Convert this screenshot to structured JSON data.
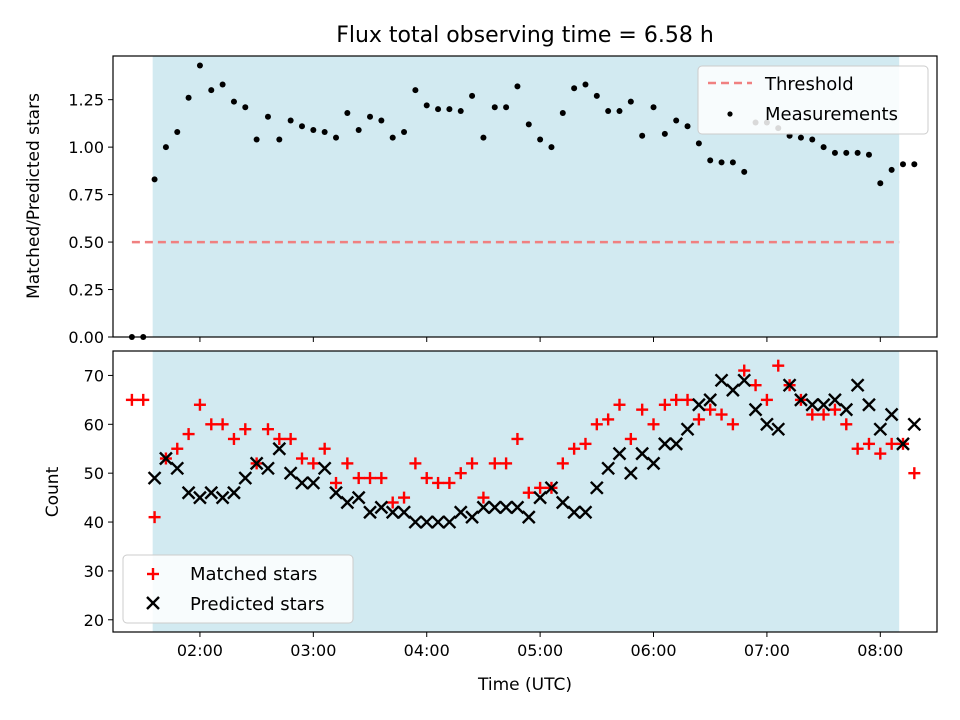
{
  "chart_data": [
    {
      "type": "scatter",
      "title": "Flux total observing time = 6.58 h",
      "ylabel": "Matched/Predicted stars",
      "xlabel": "",
      "ylim": [
        0,
        1.48
      ],
      "xlim": [
        "01:14",
        "08:30"
      ],
      "grid": false,
      "legend": "top-right",
      "shaded_region": {
        "x": [
          "01:35",
          "08:10"
        ],
        "color": "#add8e6"
      },
      "yticks": [
        "0.00",
        "0.25",
        "0.50",
        "0.75",
        "1.00",
        "1.25"
      ],
      "series": [
        {
          "name": "Threshold",
          "style": "dashed-line",
          "color": "#f08080",
          "x": [
            "01:24",
            "08:10"
          ],
          "y": [
            0.5,
            0.5
          ]
        },
        {
          "name": "Measurements",
          "style": "dot",
          "color": "#000000",
          "x": [
            "01:24",
            "01:30",
            "01:36",
            "01:42",
            "01:48",
            "01:54",
            "02:00",
            "02:06",
            "02:12",
            "02:18",
            "02:24",
            "02:30",
            "02:36",
            "02:42",
            "02:48",
            "02:54",
            "03:00",
            "03:06",
            "03:12",
            "03:18",
            "03:24",
            "03:30",
            "03:36",
            "03:42",
            "03:48",
            "03:54",
            "04:00",
            "04:06",
            "04:12",
            "04:18",
            "04:24",
            "04:30",
            "04:36",
            "04:42",
            "04:48",
            "04:54",
            "05:00",
            "05:06",
            "05:12",
            "05:18",
            "05:24",
            "05:30",
            "05:36",
            "05:42",
            "05:48",
            "05:54",
            "06:00",
            "06:06",
            "06:12",
            "06:18",
            "06:24",
            "06:30",
            "06:36",
            "06:42",
            "06:48",
            "06:54",
            "07:00",
            "07:06",
            "07:12",
            "07:18",
            "07:24",
            "07:30",
            "07:36",
            "07:42",
            "07:48",
            "07:54",
            "08:00",
            "08:06",
            "08:12",
            "08:18"
          ],
          "y": [
            0.0,
            0.0,
            0.83,
            1.0,
            1.08,
            1.26,
            1.43,
            1.3,
            1.33,
            1.24,
            1.21,
            1.04,
            1.16,
            1.04,
            1.14,
            1.11,
            1.09,
            1.08,
            1.05,
            1.18,
            1.09,
            1.16,
            1.14,
            1.05,
            1.08,
            1.3,
            1.22,
            1.2,
            1.2,
            1.19,
            1.27,
            1.05,
            1.21,
            1.21,
            1.32,
            1.12,
            1.04,
            1.0,
            1.18,
            1.31,
            1.33,
            1.27,
            1.19,
            1.19,
            1.24,
            1.06,
            1.21,
            1.07,
            1.14,
            1.11,
            1.02,
            0.93,
            0.92,
            0.92,
            0.87,
            1.13,
            1.13,
            1.1,
            1.06,
            1.05,
            1.04,
            1.0,
            0.97,
            0.97,
            0.97,
            0.96,
            0.81,
            0.88,
            0.91,
            0.91
          ]
        }
      ]
    },
    {
      "type": "scatter",
      "title": "",
      "xlabel": "Time (UTC)",
      "ylabel": "Count",
      "ylim": [
        17.5,
        75
      ],
      "xlim": [
        "01:14",
        "08:30"
      ],
      "grid": false,
      "legend": "bottom-left",
      "shaded_region": {
        "x": [
          "01:35",
          "08:10"
        ],
        "color": "#add8e6"
      },
      "xticks": [
        "02:00",
        "03:00",
        "04:00",
        "05:00",
        "06:00",
        "07:00",
        "08:00"
      ],
      "yticks": [
        "20",
        "30",
        "40",
        "50",
        "60",
        "70"
      ],
      "series": [
        {
          "name": "Matched stars",
          "style": "plus",
          "color": "#ff0000",
          "x": [
            "01:24",
            "01:30",
            "01:36",
            "01:42",
            "01:48",
            "01:54",
            "02:00",
            "02:06",
            "02:12",
            "02:18",
            "02:24",
            "02:30",
            "02:36",
            "02:42",
            "02:48",
            "02:54",
            "03:00",
            "03:06",
            "03:12",
            "03:18",
            "03:24",
            "03:30",
            "03:36",
            "03:42",
            "03:48",
            "03:54",
            "04:00",
            "04:06",
            "04:12",
            "04:18",
            "04:24",
            "04:30",
            "04:36",
            "04:42",
            "04:48",
            "04:54",
            "05:00",
            "05:06",
            "05:12",
            "05:18",
            "05:24",
            "05:30",
            "05:36",
            "05:42",
            "05:48",
            "05:54",
            "06:00",
            "06:06",
            "06:12",
            "06:18",
            "06:24",
            "06:30",
            "06:36",
            "06:42",
            "06:48",
            "06:54",
            "07:00",
            "07:06",
            "07:12",
            "07:18",
            "07:24",
            "07:30",
            "07:36",
            "07:42",
            "07:48",
            "07:54",
            "08:00",
            "08:06",
            "08:12",
            "08:18"
          ],
          "y": [
            65,
            65,
            41,
            53,
            55,
            58,
            64,
            60,
            60,
            57,
            59,
            52,
            59,
            57,
            57,
            53,
            52,
            55,
            48,
            52,
            49,
            49,
            49,
            44,
            45,
            52,
            49,
            48,
            48,
            50,
            52,
            45,
            52,
            52,
            57,
            46,
            47,
            47,
            52,
            55,
            56,
            60,
            61,
            64,
            57,
            63,
            60,
            64,
            65,
            65,
            61,
            63,
            62,
            60,
            71,
            68,
            65,
            72,
            68,
            65,
            62,
            62,
            63,
            60,
            55,
            56,
            54,
            56,
            56,
            50
          ]
        },
        {
          "name": "Predicted stars",
          "style": "cross",
          "color": "#000000",
          "x": [
            "01:24",
            "01:30",
            "01:36",
            "01:42",
            "01:48",
            "01:54",
            "02:00",
            "02:06",
            "02:12",
            "02:18",
            "02:24",
            "02:30",
            "02:36",
            "02:42",
            "02:48",
            "02:54",
            "03:00",
            "03:06",
            "03:12",
            "03:18",
            "03:24",
            "03:30",
            "03:36",
            "03:42",
            "03:48",
            "03:54",
            "04:00",
            "04:06",
            "04:12",
            "04:18",
            "04:24",
            "04:30",
            "04:36",
            "04:42",
            "04:48",
            "04:54",
            "05:00",
            "05:06",
            "05:12",
            "05:18",
            "05:24",
            "05:30",
            "05:36",
            "05:42",
            "05:48",
            "05:54",
            "06:00",
            "06:06",
            "06:12",
            "06:18",
            "06:24",
            "06:30",
            "06:36",
            "06:42",
            "06:48",
            "06:54",
            "07:00",
            "07:06",
            "07:12",
            "07:18",
            "07:24",
            "07:30",
            "07:36",
            "07:42",
            "07:48",
            "07:54",
            "08:00",
            "08:06",
            "08:12",
            "08:18"
          ],
          "y": [
            null,
            null,
            49,
            53,
            51,
            46,
            45,
            46,
            45,
            46,
            49,
            52,
            51,
            55,
            50,
            48,
            48,
            51,
            46,
            44,
            45,
            42,
            43,
            42,
            42,
            40,
            40,
            40,
            40,
            42,
            41,
            43,
            43,
            43,
            43,
            41,
            45,
            47,
            44,
            42,
            42,
            47,
            51,
            54,
            50,
            54,
            52,
            56,
            56,
            59,
            64,
            65,
            69,
            67,
            69,
            63,
            60,
            59,
            68,
            65,
            64,
            64,
            65,
            63,
            68,
            64,
            59,
            62,
            56,
            60
          ]
        }
      ]
    }
  ]
}
